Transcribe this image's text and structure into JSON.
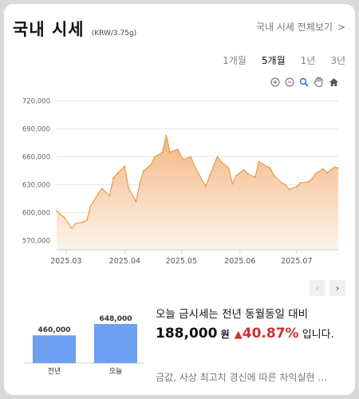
{
  "header": {
    "title": "국내 시세",
    "unit": "(KRW/3.75g)",
    "more_label": "국내 시세 전체보기",
    "chevron": ">"
  },
  "periods": [
    {
      "label": "1개월",
      "active": false
    },
    {
      "label": "5개월",
      "active": true
    },
    {
      "label": "1년",
      "active": false
    },
    {
      "label": "3년",
      "active": false
    }
  ],
  "tools": [
    "zoom-in-icon",
    "zoom-out-icon",
    "magnifier-icon",
    "pan-hand-icon",
    "home-icon"
  ],
  "colors": {
    "line": "#e8963a",
    "fill_top": "#f3b27a",
    "fill_bottom": "#fdf3ea",
    "bar": "#6ea0f2",
    "up": "#d32f2f"
  },
  "chart_data": {
    "type": "area",
    "title": "",
    "ylim": [
      560000,
      730000
    ],
    "y_ticks": [
      "720,000",
      "690,000",
      "660,000",
      "630,000",
      "600,000",
      "570,000"
    ],
    "x_ticks": [
      "2025.03",
      "2025.04",
      "2025.05",
      "2025.06",
      "2025.07"
    ],
    "x": [
      "2025.02.24",
      "2025.02.26",
      "2025.02.28",
      "2025.03.04",
      "2025.03.06",
      "2025.03.10",
      "2025.03.12",
      "2025.03.14",
      "2025.03.18",
      "2025.03.20",
      "2025.03.24",
      "2025.03.26",
      "2025.03.28",
      "2025.04.01",
      "2025.04.03",
      "2025.04.07",
      "2025.04.09",
      "2025.04.11",
      "2025.04.15",
      "2025.04.17",
      "2025.04.21",
      "2025.04.23",
      "2025.04.25",
      "2025.04.29",
      "2025.05.02",
      "2025.05.06",
      "2025.05.08",
      "2025.05.12",
      "2025.05.14",
      "2025.05.16",
      "2025.05.20",
      "2025.05.22",
      "2025.05.26",
      "2025.05.28",
      "2025.05.30",
      "2025.06.03",
      "2025.06.05",
      "2025.06.09",
      "2025.06.11",
      "2025.06.13",
      "2025.06.17",
      "2025.06.19",
      "2025.06.23",
      "2025.06.25",
      "2025.06.27",
      "2025.07.01",
      "2025.07.03",
      "2025.07.07",
      "2025.07.09",
      "2025.07.11",
      "2025.07.15",
      "2025.07.17",
      "2025.07.21",
      "2025.07.23"
    ],
    "values": [
      602000,
      598000,
      595000,
      583000,
      588000,
      590000,
      592000,
      607000,
      620000,
      626000,
      618000,
      637000,
      642000,
      650000,
      627000,
      612000,
      631000,
      645000,
      652000,
      660000,
      665000,
      683000,
      665000,
      668000,
      657000,
      660000,
      650000,
      635000,
      628000,
      640000,
      660000,
      655000,
      648000,
      631000,
      640000,
      646000,
      642000,
      638000,
      655000,
      652000,
      648000,
      640000,
      632000,
      630000,
      625000,
      628000,
      632000,
      633000,
      636000,
      642000,
      647000,
      643000,
      649000,
      648000
    ]
  },
  "compare": {
    "bars": [
      {
        "label": "전년",
        "value": 460000,
        "value_label": "460,000"
      },
      {
        "label": "오늘",
        "value": 648000,
        "value_label": "648,000"
      }
    ]
  },
  "summary": {
    "line1": "오늘 금시세는 전년 동월동일 대비",
    "amount": "188,000",
    "won": "원",
    "triangle": "▲",
    "percent": "40.87%",
    "tail": "입니다."
  },
  "news": "금값, 사상 최고치 경신에 따른 차익실현 …",
  "pager": {
    "prev": "‹",
    "next": "›"
  }
}
